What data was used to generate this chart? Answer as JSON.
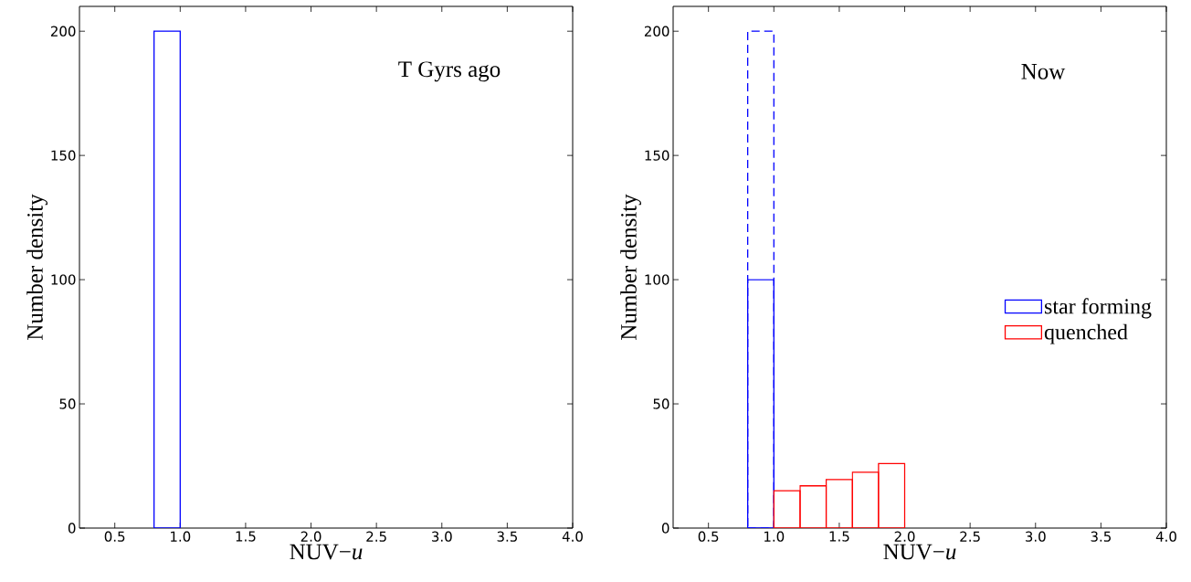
{
  "chart_data": [
    {
      "type": "histogram",
      "xlabel": "NUV−*u*",
      "ylabel": "Number density",
      "annotations": [
        "T Gyrs ago"
      ],
      "bins": [
        0.8,
        1.0
      ],
      "series": [
        {
          "color": "#0000ff",
          "line_style": "solid",
          "values": [
            200
          ]
        }
      ],
      "xlim": [
        0.23,
        4.0
      ],
      "ylim": [
        0,
        210
      ],
      "xticks": [
        {
          "value": 0.5,
          "label": "0.5"
        },
        {
          "value": 1,
          "label": "1.0"
        },
        {
          "value": 1.5,
          "label": "1.5"
        },
        {
          "value": 2,
          "label": "2.0"
        },
        {
          "value": 2.5,
          "label": "2.5"
        },
        {
          "value": 3,
          "label": "3.0"
        },
        {
          "value": 3.5,
          "label": "3.5"
        },
        {
          "value": 4,
          "label": "4.0"
        }
      ],
      "yticks": [
        0,
        50,
        100,
        150,
        200
      ],
      "grid": false,
      "legend": false
    },
    {
      "type": "histogram",
      "xlabel": "NUV−*u*",
      "ylabel": "Number density",
      "annotations": [
        "Now"
      ],
      "bins": [
        0.8,
        1.0,
        1.2,
        1.4,
        1.6,
        1.8,
        2.0
      ],
      "series": [
        {
          "color": "#0000ff",
          "line_style": "dashed",
          "values": [
            200,
            null,
            null,
            null,
            null,
            null
          ]
        },
        {
          "name": "star forming",
          "color": "#0000ff",
          "line_style": "solid",
          "values": [
            100,
            null,
            null,
            null,
            null,
            null
          ]
        },
        {
          "name": "quenched",
          "color": "#ff0000",
          "line_style": "solid",
          "values": [
            null,
            15,
            17,
            19.5,
            22.5,
            26
          ]
        }
      ],
      "xlim": [
        0.23,
        4.0
      ],
      "ylim": [
        0,
        210
      ],
      "xticks": [
        {
          "value": 0.5,
          "label": "0.5"
        },
        {
          "value": 1,
          "label": "1.0"
        },
        {
          "value": 1.5,
          "label": "1.5"
        },
        {
          "value": 2,
          "label": "2.0"
        },
        {
          "value": 2.5,
          "label": "2.5"
        },
        {
          "value": 3,
          "label": "3.0"
        },
        {
          "value": 3.5,
          "label": "3.5"
        },
        {
          "value": 4,
          "label": "4.0"
        }
      ],
      "yticks": [
        0,
        50,
        100,
        150,
        200
      ],
      "grid": false,
      "legend": "right"
    }
  ]
}
